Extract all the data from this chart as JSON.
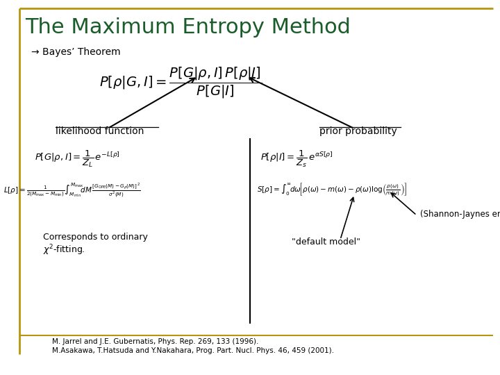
{
  "title": "The Maximum Entropy Method",
  "title_color": "#1a5c2a",
  "subtitle": "→ Bayes’ Theorem",
  "bg_color": "#ffffff",
  "border_color": "#b8960c",
  "ref1": "M. Jarrel and J.E. Gubernatis, Phys. Rep. 269, 133 (1996).",
  "ref2": "M.Asakawa, T.Hatsuda and Y.Nakahara, Prog. Part. Nucl. Phys. 46, 459 (2001).",
  "likelihood_label": "likelihood function",
  "prior_label": "prior probability",
  "shannon_note": "(Shannon-Jaynes entropy)",
  "default_model_note": "\"default model\"",
  "corresponds_line1": "Corresponds to ordinary",
  "corresponds_line2": "$\\chi^2$-fitting."
}
